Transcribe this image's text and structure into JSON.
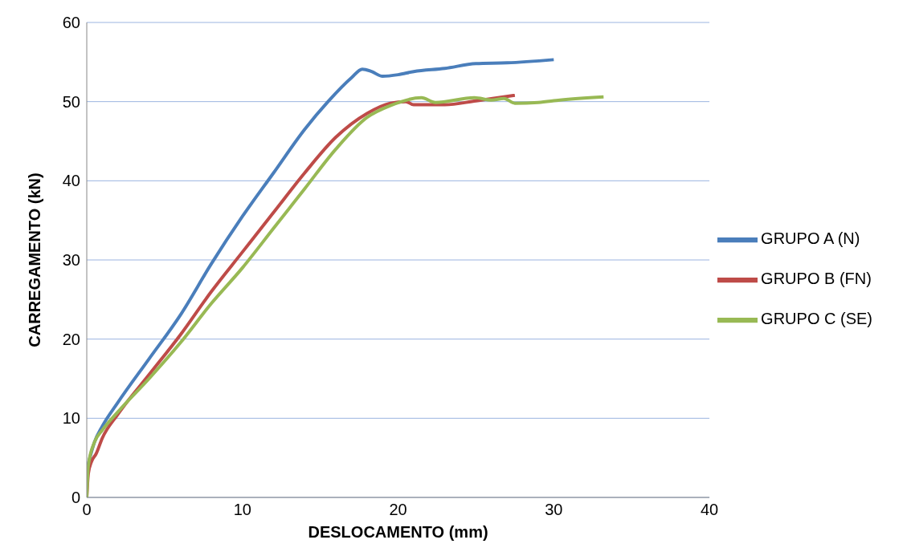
{
  "chart_data": {
    "type": "line",
    "xlabel": "DESLOCAMENTO (mm)",
    "ylabel": "CARREGAMENTO (kN)",
    "xlim": [
      0,
      40
    ],
    "xticks": [
      0,
      10,
      20,
      30,
      40
    ],
    "ylim": [
      0,
      60
    ],
    "yticks": [
      0,
      10,
      20,
      30,
      40,
      50,
      60
    ],
    "grid": "y",
    "legend": "right",
    "marker": "none",
    "line_style": "solid",
    "series": [
      {
        "name": "GRUPO A (N)",
        "color": "#4a7ebb",
        "x": [
          0,
          0.5,
          1,
          2,
          4,
          6,
          8,
          10,
          12,
          14,
          15.5,
          17,
          17.7,
          18.3,
          19,
          20,
          21,
          23,
          25,
          27,
          30
        ],
        "values": [
          3.5,
          7,
          9,
          12,
          17.5,
          23,
          29.5,
          35.5,
          41,
          46.5,
          50,
          53,
          54.1,
          53.8,
          53.2,
          53.4,
          53.8,
          54.2,
          54.8,
          54.9,
          55.3
        ]
      },
      {
        "name": "GRUPO B (FN)",
        "color": "#be4b48",
        "x": [
          0,
          0.1,
          0.3,
          0.6,
          1,
          2,
          4,
          6,
          8,
          10,
          12,
          14,
          16,
          18,
          19.5,
          20.5,
          21,
          22,
          23,
          25,
          27.5
        ],
        "values": [
          0,
          3,
          4.5,
          5.5,
          7.5,
          10.5,
          15.5,
          20.5,
          26,
          31,
          36,
          41,
          45.5,
          48.5,
          49.8,
          50,
          49.6,
          49.6,
          49.6,
          50.1,
          50.8
        ]
      },
      {
        "name": "GRUPO C (SE)",
        "color": "#98b954",
        "x": [
          0,
          0.1,
          0.5,
          1,
          2,
          4,
          6,
          8,
          10,
          12,
          14,
          16,
          18,
          19.5,
          21.5,
          22.4,
          24.9,
          26,
          26.8,
          27.5,
          29,
          30.4,
          33.2
        ],
        "values": [
          0,
          4,
          7,
          8.5,
          10.8,
          15,
          19.5,
          24.5,
          29,
          34,
          39,
          44,
          48,
          49.5,
          50.5,
          49.9,
          50.5,
          50.2,
          50.4,
          49.8,
          49.9,
          50.2,
          50.6
        ]
      }
    ]
  }
}
